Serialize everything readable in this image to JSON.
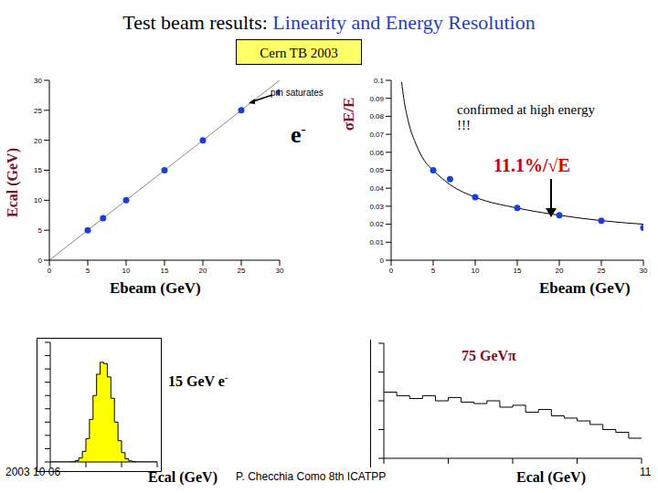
{
  "slide": {
    "title": [
      "Test beam results:",
      "Linearity and Energy Resolution"
    ],
    "label": "Cern TB 2003",
    "footer": {
      "date": "2003 10 06",
      "author": "P. Checchia  Como  8th ICATPP",
      "page": 11
    }
  },
  "chart_data": [
    {
      "type": "scatter",
      "xlabel": "Ebeam (GeV)",
      "ylabel": "Ecal (GeV)",
      "annotations": [
        "pm saturates",
        "e-"
      ],
      "points": {
        "x": [
          5,
          7,
          10,
          15,
          20,
          25,
          30
        ],
        "y": [
          5,
          7,
          10,
          15,
          20,
          25,
          28
        ],
        "color": "#1a3de0"
      },
      "fit": {
        "x": [
          0,
          30
        ],
        "y": [
          0,
          30
        ],
        "color": "#888888"
      },
      "xlim": [
        0,
        30
      ],
      "xticks": [
        0,
        5,
        10,
        15,
        20,
        25,
        30
      ],
      "ylim": [
        0,
        30
      ],
      "yticks": [
        0,
        5,
        10,
        15,
        20,
        25,
        30
      ]
    },
    {
      "type": "scatter",
      "xlabel": "Ebeam (GeV)",
      "ylabel": "σE/E",
      "annotations": [
        "confirmed at high energy !!!",
        "11.1%/√E"
      ],
      "points": {
        "x": [
          5,
          7,
          10,
          15,
          20,
          25,
          30
        ],
        "y": [
          0.05,
          0.045,
          0.035,
          0.029,
          0.025,
          0.022,
          0.018
        ],
        "color": "#1a3de0"
      },
      "fit": {
        "x": [
          1.25,
          1.5,
          2,
          3,
          4,
          5,
          7,
          10,
          15,
          20,
          25,
          30
        ],
        "y": [
          0.099,
          0.09,
          0.078,
          0.064,
          0.055,
          0.05,
          0.042,
          0.035,
          0.029,
          0.025,
          0.022,
          0.02
        ],
        "color": "#000000"
      },
      "xlim": [
        0,
        30
      ],
      "xticks": [
        0,
        5,
        10,
        15,
        20,
        25,
        30
      ],
      "ylim": [
        0,
        0.1
      ],
      "yticks": [
        0,
        0.01,
        0.02,
        0.03,
        0.04,
        0.05,
        0.06,
        0.07,
        0.08,
        0.09,
        0.1
      ]
    },
    {
      "type": "histogram",
      "label": "15 GeV e-",
      "xlabel": "Ecal (GeV)",
      "bins": [
        12,
        12.2,
        12.4,
        12.6,
        12.8,
        13,
        13.2,
        13.4,
        13.6,
        13.8,
        14,
        14.2,
        14.4,
        14.6,
        14.8,
        15,
        15.2,
        15.4,
        15.6,
        15.8,
        16,
        16.2,
        16.4,
        16.6,
        16.8,
        17,
        17.2,
        17.4,
        17.6,
        17.8,
        18
      ],
      "counts": [
        0,
        0,
        0,
        0,
        0,
        0,
        1,
        5,
        15,
        40,
        88,
        160,
        250,
        330,
        375,
        370,
        320,
        240,
        150,
        80,
        35,
        12,
        4,
        1,
        0,
        0,
        0,
        0,
        0,
        0
      ],
      "color": "#ffff00",
      "xlim": [
        12,
        18
      ],
      "ylim": [
        0,
        450
      ],
      "yticks": [
        0,
        50,
        100,
        150,
        200,
        250,
        300,
        350,
        400,
        450
      ],
      "tick_labels": false
    },
    {
      "type": "histogram",
      "label": "75 GeVπ",
      "xlabel": "Ecal (GeV)",
      "bins": [
        0,
        5,
        10,
        15,
        20,
        25,
        30,
        35,
        40,
        45,
        50,
        55,
        60,
        65,
        70,
        75,
        80,
        85,
        90,
        95,
        100
      ],
      "counts": [
        200,
        150,
        120,
        150,
        100,
        130,
        90,
        80,
        100,
        60,
        70,
        40,
        50,
        30,
        25,
        20,
        15,
        10,
        8,
        5
      ],
      "color": "#000000",
      "log": "y",
      "xlim": [
        0,
        100
      ],
      "ylim": [
        1,
        10000
      ],
      "yticks": [
        1,
        10,
        100,
        1000,
        10000
      ],
      "tick_labels": false
    }
  ]
}
